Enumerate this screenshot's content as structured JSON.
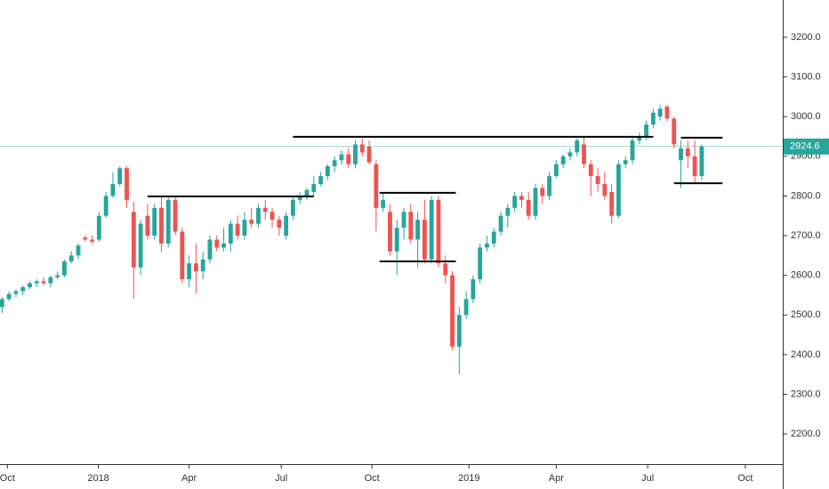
{
  "chart_data": {
    "type": "candlestick",
    "up_color": "#26a69a",
    "down_color": "#ef5350",
    "level_color": "#000000",
    "last_price_color": "#26a69a",
    "ohlc": [
      [
        2520,
        2545,
        2505,
        2540
      ],
      [
        2540,
        2560,
        2535,
        2553
      ],
      [
        2553,
        2565,
        2545,
        2560
      ],
      [
        2560,
        2575,
        2550,
        2570
      ],
      [
        2570,
        2585,
        2565,
        2580
      ],
      [
        2580,
        2590,
        2570,
        2585
      ],
      [
        2585,
        2595,
        2575,
        2580
      ],
      [
        2580,
        2600,
        2570,
        2595
      ],
      [
        2595,
        2610,
        2590,
        2600
      ],
      [
        2600,
        2640,
        2595,
        2635
      ],
      [
        2635,
        2660,
        2630,
        2650
      ],
      [
        2650,
        2680,
        2640,
        2675
      ],
      [
        2695,
        2700,
        2685,
        2690
      ],
      [
        2690,
        2700,
        2680,
        2685
      ],
      [
        2690,
        2760,
        2685,
        2750
      ],
      [
        2750,
        2810,
        2745,
        2800
      ],
      [
        2800,
        2860,
        2795,
        2830
      ],
      [
        2830,
        2875,
        2825,
        2870
      ],
      [
        2870,
        2875,
        2770,
        2790
      ],
      [
        2760,
        2785,
        2540,
        2620
      ],
      [
        2620,
        2740,
        2600,
        2730
      ],
      [
        2750,
        2780,
        2690,
        2700
      ],
      [
        2700,
        2780,
        2690,
        2770
      ],
      [
        2770,
        2800,
        2660,
        2680
      ],
      [
        2680,
        2800,
        2670,
        2790
      ],
      [
        2790,
        2800,
        2700,
        2710
      ],
      [
        2710,
        2720,
        2580,
        2590
      ],
      [
        2590,
        2650,
        2570,
        2630
      ],
      [
        2630,
        2680,
        2555,
        2610
      ],
      [
        2610,
        2660,
        2590,
        2640
      ],
      [
        2640,
        2700,
        2630,
        2690
      ],
      [
        2690,
        2700,
        2660,
        2670
      ],
      [
        2670,
        2720,
        2660,
        2680
      ],
      [
        2680,
        2740,
        2660,
        2730
      ],
      [
        2730,
        2750,
        2690,
        2700
      ],
      [
        2700,
        2760,
        2690,
        2740
      ],
      [
        2740,
        2770,
        2720,
        2730
      ],
      [
        2730,
        2780,
        2720,
        2770
      ],
      [
        2770,
        2790,
        2740,
        2760
      ],
      [
        2760,
        2770,
        2720,
        2740
      ],
      [
        2740,
        2750,
        2700,
        2720
      ],
      [
        2700,
        2760,
        2690,
        2750
      ],
      [
        2750,
        2800,
        2740,
        2790
      ],
      [
        2790,
        2810,
        2780,
        2800
      ],
      [
        2800,
        2820,
        2790,
        2815
      ],
      [
        2810,
        2850,
        2800,
        2830
      ],
      [
        2830,
        2860,
        2825,
        2850
      ],
      [
        2850,
        2880,
        2840,
        2875
      ],
      [
        2875,
        2900,
        2860,
        2890
      ],
      [
        2890,
        2915,
        2880,
        2905
      ],
      [
        2905,
        2920,
        2870,
        2880
      ],
      [
        2880,
        2940,
        2870,
        2930
      ],
      [
        2930,
        2945,
        2900,
        2910
      ],
      [
        2925,
        2940,
        2880,
        2885
      ],
      [
        2880,
        2890,
        2710,
        2770
      ],
      [
        2770,
        2810,
        2760,
        2790
      ],
      [
        2760,
        2780,
        2650,
        2660
      ],
      [
        2660,
        2740,
        2600,
        2720
      ],
      [
        2720,
        2770,
        2690,
        2760
      ],
      [
        2760,
        2780,
        2680,
        2690
      ],
      [
        2690,
        2760,
        2620,
        2740
      ],
      [
        2740,
        2790,
        2630,
        2640
      ],
      [
        2640,
        2800,
        2630,
        2790
      ],
      [
        2790,
        2800,
        2620,
        2630
      ],
      [
        2630,
        2650,
        2580,
        2600
      ],
      [
        2600,
        2610,
        2410,
        2420
      ],
      [
        2420,
        2520,
        2350,
        2500
      ],
      [
        2500,
        2560,
        2490,
        2540
      ],
      [
        2540,
        2600,
        2530,
        2590
      ],
      [
        2590,
        2680,
        2580,
        2670
      ],
      [
        2670,
        2700,
        2660,
        2680
      ],
      [
        2680,
        2720,
        2670,
        2710
      ],
      [
        2710,
        2760,
        2700,
        2750
      ],
      [
        2750,
        2780,
        2720,
        2770
      ],
      [
        2770,
        2810,
        2760,
        2800
      ],
      [
        2800,
        2810,
        2770,
        2790
      ],
      [
        2790,
        2810,
        2740,
        2750
      ],
      [
        2750,
        2830,
        2740,
        2820
      ],
      [
        2820,
        2830,
        2780,
        2800
      ],
      [
        2800,
        2860,
        2790,
        2850
      ],
      [
        2850,
        2890,
        2845,
        2880
      ],
      [
        2880,
        2905,
        2870,
        2900
      ],
      [
        2900,
        2920,
        2890,
        2910
      ],
      [
        2910,
        2945,
        2900,
        2940
      ],
      [
        2930,
        2950,
        2870,
        2880
      ],
      [
        2880,
        2890,
        2800,
        2850
      ],
      [
        2850,
        2870,
        2810,
        2830
      ],
      [
        2830,
        2860,
        2790,
        2800
      ],
      [
        2810,
        2830,
        2730,
        2750
      ],
      [
        2750,
        2890,
        2745,
        2880
      ],
      [
        2880,
        2900,
        2870,
        2890
      ],
      [
        2890,
        2950,
        2880,
        2940
      ],
      [
        2940,
        2960,
        2930,
        2950
      ],
      [
        2950,
        2990,
        2940,
        2980
      ],
      [
        2980,
        3020,
        2970,
        3010
      ],
      [
        3000,
        3030,
        2990,
        3020
      ],
      [
        3025,
        3030,
        2990,
        2995
      ],
      [
        2995,
        3000,
        2920,
        2930
      ],
      [
        2890,
        2940,
        2820,
        2920
      ],
      [
        2920,
        2940,
        2870,
        2900
      ],
      [
        2900,
        2940,
        2830,
        2850
      ],
      [
        2850,
        2930,
        2840,
        2925
      ]
    ],
    "levels": [
      {
        "value": 2799,
        "from": 21,
        "to": 45
      },
      {
        "value": 2949,
        "from": 42,
        "to": 94
      },
      {
        "value": 2808,
        "from": 54.5,
        "to": 65.5
      },
      {
        "value": 2635,
        "from": 54.5,
        "to": 65.5
      },
      {
        "value": 2947,
        "from": 98,
        "to": 104
      },
      {
        "value": 2832,
        "from": 97,
        "to": 104
      }
    ],
    "last_price": {
      "value": 2924.6,
      "label": "2924.6"
    },
    "xlim": [
      -0.3,
      112.7
    ],
    "xticks": [
      {
        "value": 0.77,
        "label": "Oct"
      },
      {
        "value": 13.9,
        "label": "2018"
      },
      {
        "value": 27.0,
        "label": "Apr"
      },
      {
        "value": 40.3,
        "label": "Jul"
      },
      {
        "value": 53.4,
        "label": "Oct"
      },
      {
        "value": 67.4,
        "label": "2019"
      },
      {
        "value": 80.0,
        "label": "Apr"
      },
      {
        "value": 93.2,
        "label": "Jul"
      },
      {
        "value": 107.3,
        "label": "Oct"
      }
    ],
    "ylim": [
      2124,
      3294
    ],
    "yticks": [
      {
        "value": 2200,
        "label": "2200.0"
      },
      {
        "value": 2300,
        "label": "2300.0"
      },
      {
        "value": 2400,
        "label": "2400.0"
      },
      {
        "value": 2500,
        "label": "2500.0"
      },
      {
        "value": 2600,
        "label": "2600.0"
      },
      {
        "value": 2700,
        "label": "2700.0"
      },
      {
        "value": 2800,
        "label": "2800.0"
      },
      {
        "value": 2900,
        "label": "2900.0"
      },
      {
        "value": 3000,
        "label": "3000.0"
      },
      {
        "value": 3100,
        "label": "3100.0"
      },
      {
        "value": 3200,
        "label": "3200.0"
      }
    ]
  }
}
